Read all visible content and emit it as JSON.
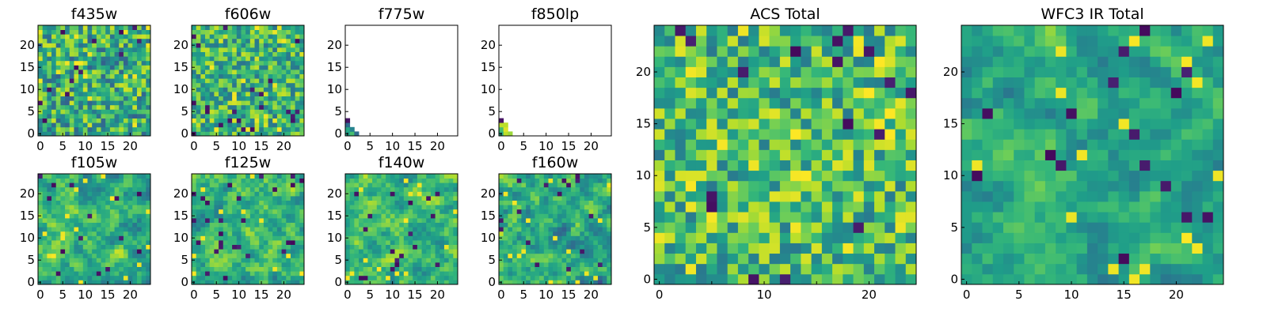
{
  "figure": {
    "background": "#ffffff"
  },
  "colormap": {
    "name": "viridis",
    "stops": [
      "#440154",
      "#482878",
      "#3e4989",
      "#31688e",
      "#26828e",
      "#1f9e89",
      "#35b779",
      "#6ece58",
      "#b5de2b",
      "#fde725"
    ]
  },
  "chart_data": [
    {
      "type": "heatmap",
      "title": "f435w",
      "grid_size": 24,
      "texture": "noise",
      "seed": 11,
      "mean": 0.62,
      "spread": 0.22,
      "xticks": [
        0,
        5,
        10,
        15,
        20
      ],
      "yticks": [
        0,
        5,
        10,
        15,
        20
      ],
      "ylim": [
        0,
        24
      ]
    },
    {
      "type": "heatmap",
      "title": "f606w",
      "grid_size": 24,
      "texture": "noise",
      "seed": 23,
      "mean": 0.66,
      "spread": 0.2,
      "xticks": [
        0,
        5,
        10,
        15,
        20
      ],
      "yticks": [
        0,
        5,
        10,
        15,
        20
      ],
      "ylim": [
        0,
        24
      ]
    },
    {
      "type": "heatmap",
      "title": "f775w",
      "grid_size": 24,
      "texture": "corner",
      "seed": 37,
      "corner_cells": [
        {
          "x": 0,
          "y": 0,
          "v": 0.55
        },
        {
          "x": 0,
          "y": 1,
          "v": 0.6
        },
        {
          "x": 0,
          "y": 2,
          "v": 0.35
        },
        {
          "x": 0,
          "y": 3,
          "v": 0.05
        },
        {
          "x": 1,
          "y": 0,
          "v": 0.7
        },
        {
          "x": 1,
          "y": 1,
          "v": 0.45
        },
        {
          "x": 2,
          "y": 0,
          "v": 0.35
        }
      ],
      "xticks": [
        0,
        5,
        10,
        15,
        20
      ],
      "yticks": [
        0,
        5,
        10,
        15,
        20
      ],
      "ylim": [
        0,
        24
      ]
    },
    {
      "type": "heatmap",
      "title": "f850lp",
      "grid_size": 24,
      "texture": "corner",
      "seed": 41,
      "corner_cells": [
        {
          "x": 0,
          "y": 0,
          "v": 0.6
        },
        {
          "x": 0,
          "y": 1,
          "v": 0.7
        },
        {
          "x": 0,
          "y": 2,
          "v": 0.9
        },
        {
          "x": 0,
          "y": 3,
          "v": 0.05
        },
        {
          "x": 1,
          "y": 0,
          "v": 0.9
        },
        {
          "x": 1,
          "y": 1,
          "v": 0.95
        },
        {
          "x": 1,
          "y": 2,
          "v": 0.9
        },
        {
          "x": 2,
          "y": 0,
          "v": 0.85
        }
      ],
      "xticks": [
        0,
        5,
        10,
        15,
        20
      ],
      "yticks": [
        0,
        5,
        10,
        15,
        20
      ],
      "ylim": [
        0,
        24
      ]
    },
    {
      "type": "heatmap",
      "title": "f105w",
      "grid_size": 24,
      "texture": "smooth",
      "seed": 53,
      "mean": 0.64,
      "spread": 0.22,
      "xticks": [
        0,
        5,
        10,
        15,
        20
      ],
      "yticks": [
        0,
        5,
        10,
        15,
        20
      ],
      "ylim": [
        0,
        24
      ]
    },
    {
      "type": "heatmap",
      "title": "f125w",
      "grid_size": 24,
      "texture": "smooth",
      "seed": 67,
      "mean": 0.66,
      "spread": 0.22,
      "xticks": [
        0,
        5,
        10,
        15,
        20
      ],
      "yticks": [
        0,
        5,
        10,
        15,
        20
      ],
      "ylim": [
        0,
        24
      ]
    },
    {
      "type": "heatmap",
      "title": "f140w",
      "grid_size": 24,
      "texture": "smooth",
      "seed": 71,
      "mean": 0.66,
      "spread": 0.22,
      "xticks": [
        0,
        5,
        10,
        15,
        20
      ],
      "yticks": [
        0,
        5,
        10,
        15,
        20
      ],
      "ylim": [
        0,
        24
      ]
    },
    {
      "type": "heatmap",
      "title": "f160w",
      "grid_size": 24,
      "texture": "smooth",
      "seed": 83,
      "mean": 0.62,
      "spread": 0.24,
      "xticks": [
        0,
        5,
        10,
        15,
        20
      ],
      "yticks": [
        0,
        5,
        10,
        15,
        20
      ],
      "ylim": [
        0,
        24
      ]
    },
    {
      "type": "heatmap",
      "title": "ACS Total",
      "grid_size": 24,
      "texture": "noise",
      "seed": 97,
      "mean": 0.68,
      "spread": 0.2,
      "xticks": [
        0,
        10,
        20
      ],
      "xminor": [
        5,
        15
      ],
      "yticks": [
        0,
        5,
        10,
        15,
        20
      ],
      "ylim": [
        0,
        24
      ]
    },
    {
      "type": "heatmap",
      "title": "WFC3 IR Total",
      "grid_size": 24,
      "texture": "smooth",
      "seed": 101,
      "mean": 0.6,
      "spread": 0.18,
      "xticks": [
        0,
        5,
        10,
        15,
        20
      ],
      "yticks": [
        0,
        5,
        10,
        15,
        20
      ],
      "ylim": [
        0,
        24
      ]
    }
  ]
}
